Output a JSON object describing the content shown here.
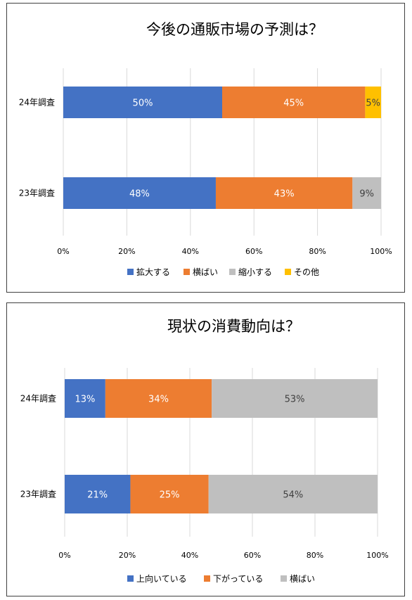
{
  "chart_data": [
    {
      "type": "bar",
      "orientation": "horizontal",
      "stacked": "percent",
      "title": "今後の通販市場の予測は？",
      "categories": [
        "24年調査",
        "23年調査"
      ],
      "series": [
        {
          "name": "拡大する",
          "values": [
            50,
            48
          ],
          "labels": [
            "50%",
            "48%"
          ],
          "color": "#4472C4"
        },
        {
          "name": "横ばい",
          "values": [
            45,
            43
          ],
          "labels": [
            "45%",
            "43%"
          ],
          "color": "#ED7D31"
        },
        {
          "name": "縮小する",
          "values": [
            0,
            9
          ],
          "labels": [
            "",
            "9%"
          ],
          "color": "#BFBFBF"
        },
        {
          "name": "その他",
          "values": [
            5,
            0
          ],
          "labels": [
            "5%",
            ""
          ],
          "color": "#FFC000"
        }
      ],
      "xticks": [
        "0%",
        "20%",
        "40%",
        "60%",
        "80%",
        "100%"
      ],
      "xlim": [
        0,
        100
      ],
      "grid": true,
      "legend": "bottom"
    },
    {
      "type": "bar",
      "orientation": "horizontal",
      "stacked": "percent",
      "title": "現状の消費動向は？",
      "categories": [
        "24年調査",
        "23年調査"
      ],
      "series": [
        {
          "name": "上向いている",
          "values": [
            13,
            21
          ],
          "labels": [
            "13%",
            "21%"
          ],
          "color": "#4472C4"
        },
        {
          "name": "下がっている",
          "values": [
            34,
            25
          ],
          "labels": [
            "34%",
            "25%"
          ],
          "color": "#ED7D31"
        },
        {
          "name": "横ばい",
          "values": [
            53,
            54
          ],
          "labels": [
            "53%",
            "54%"
          ],
          "color": "#BFBFBF"
        }
      ],
      "xticks": [
        "0%",
        "20%",
        "40%",
        "60%",
        "80%",
        "100%"
      ],
      "xlim": [
        0,
        100
      ],
      "grid": true,
      "legend": "bottom"
    }
  ]
}
